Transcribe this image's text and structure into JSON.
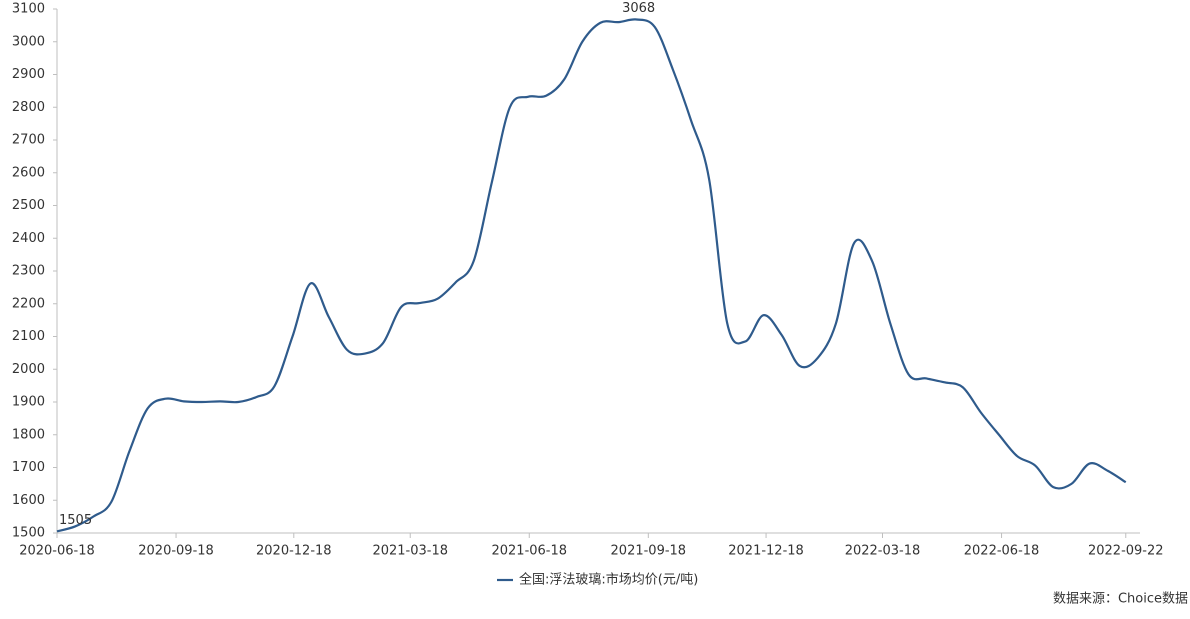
{
  "chart_data": {
    "type": "line",
    "x": [
      "2020-06-18",
      "2020-07-02",
      "2020-07-16",
      "2020-07-30",
      "2020-08-13",
      "2020-08-27",
      "2020-09-10",
      "2020-09-24",
      "2020-10-08",
      "2020-10-22",
      "2020-11-05",
      "2020-11-19",
      "2020-12-03",
      "2020-12-17",
      "2020-12-31",
      "2021-01-14",
      "2021-01-28",
      "2021-02-11",
      "2021-02-25",
      "2021-03-11",
      "2021-03-25",
      "2021-04-08",
      "2021-04-22",
      "2021-05-06",
      "2021-05-20",
      "2021-06-03",
      "2021-06-17",
      "2021-07-01",
      "2021-07-15",
      "2021-07-29",
      "2021-08-12",
      "2021-08-26",
      "2021-09-09",
      "2021-09-23",
      "2021-10-07",
      "2021-10-21",
      "2021-11-04",
      "2021-11-18",
      "2021-12-02",
      "2021-12-16",
      "2021-12-30",
      "2022-01-13",
      "2022-01-27",
      "2022-02-10",
      "2022-02-24",
      "2022-03-10",
      "2022-03-24",
      "2022-04-07",
      "2022-04-21",
      "2022-05-05",
      "2022-05-19",
      "2022-06-02",
      "2022-06-16",
      "2022-06-30",
      "2022-07-14",
      "2022-07-28",
      "2022-08-11",
      "2022-08-25",
      "2022-09-08",
      "2022-09-22"
    ],
    "series": [
      {
        "name": "全国:浮法玻璃:市场均价(元/吨)",
        "color": "#2f5b8c",
        "values": [
          1505,
          1520,
          1550,
          1595,
          1750,
          1880,
          1910,
          1902,
          1900,
          1902,
          1900,
          1915,
          1948,
          2100,
          2262,
          2160,
          2060,
          2048,
          2080,
          2190,
          2202,
          2215,
          2265,
          2330,
          2570,
          2800,
          2832,
          2835,
          2885,
          3000,
          3058,
          3060,
          3068,
          3045,
          2915,
          2760,
          2580,
          2140,
          2085,
          2165,
          2105,
          2010,
          2035,
          2140,
          2385,
          2330,
          2140,
          1985,
          1972,
          1960,
          1945,
          1868,
          1800,
          1735,
          1706,
          1640,
          1650,
          1712,
          1690,
          1655
        ]
      }
    ],
    "xlim": [
      "2020-06-18",
      "2022-10-03"
    ],
    "xticks": [
      "2020-06-18",
      "2020-09-18",
      "2020-12-18",
      "2021-03-18",
      "2021-06-18",
      "2021-09-18",
      "2021-12-18",
      "2022-03-18",
      "2022-06-18",
      "2022-09-22"
    ],
    "ylim": [
      1500,
      3100
    ],
    "yticks": [
      1500,
      1600,
      1700,
      1800,
      1900,
      2000,
      2100,
      2200,
      2300,
      2400,
      2500,
      2600,
      2700,
      2800,
      2900,
      3000,
      3100
    ],
    "source": "数据来源：Choice数据"
  }
}
